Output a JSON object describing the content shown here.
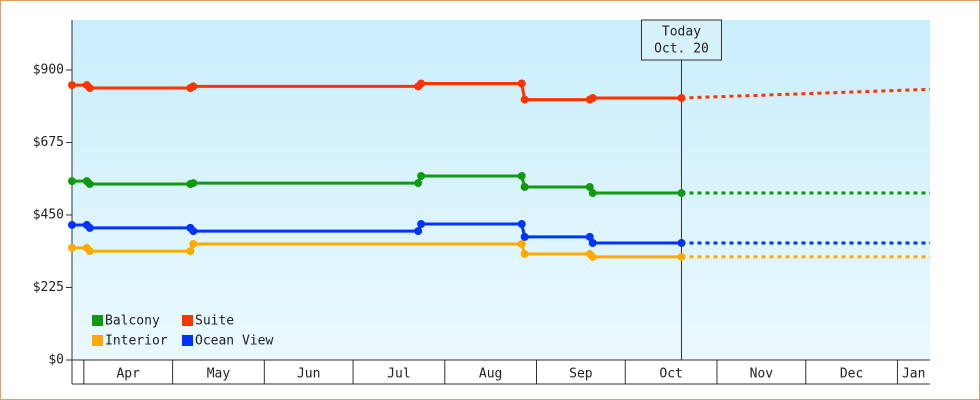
{
  "chart_data": {
    "type": "line",
    "xlim": [
      -4,
      286
    ],
    "ylim": [
      0,
      1055
    ],
    "xticks": [
      {
        "value": 0,
        "label": "Apr"
      },
      {
        "value": 30,
        "label": "May"
      },
      {
        "value": 61,
        "label": "Jun"
      },
      {
        "value": 91,
        "label": "Jul"
      },
      {
        "value": 122,
        "label": "Aug"
      },
      {
        "value": 153,
        "label": "Sep"
      },
      {
        "value": 183,
        "label": "Oct"
      },
      {
        "value": 214,
        "label": "Nov"
      },
      {
        "value": 244,
        "label": "Dec"
      },
      {
        "value": 275,
        "label": "Jan"
      }
    ],
    "yticks": [
      {
        "value": 0,
        "label": "$0"
      },
      {
        "value": 225,
        "label": "$225"
      },
      {
        "value": 450,
        "label": "$450"
      },
      {
        "value": 675,
        "label": "$675"
      },
      {
        "value": 900,
        "label": "$900"
      }
    ],
    "grid": false,
    "legend": "lower left",
    "annotation": {
      "x": 202,
      "lines": [
        "Today",
        "Oct. 20"
      ]
    },
    "series": [
      {
        "name": "Balcony",
        "color": "#119911",
        "x": [
          -4,
          1,
          2,
          36,
          37,
          113,
          114,
          148,
          149,
          171,
          172,
          202
        ],
        "values": [
          555,
          555,
          546,
          546,
          549,
          549,
          571,
          571,
          537,
          537,
          518,
          518
        ],
        "forecast_x": [
          202,
          286
        ],
        "forecast_values": [
          518,
          518
        ]
      },
      {
        "name": "Suite",
        "color": "#ff3300",
        "x": [
          -4,
          1,
          2,
          36,
          37,
          113,
          114,
          148,
          149,
          171,
          172,
          202
        ],
        "values": [
          853,
          853,
          844,
          844,
          849,
          849,
          858,
          858,
          808,
          808,
          813,
          813
        ],
        "forecast_x": [
          202,
          249,
          286
        ],
        "forecast_values": [
          813,
          828,
          840
        ]
      },
      {
        "name": "Interior",
        "color": "#ffaa00",
        "x": [
          -4,
          1,
          2,
          36,
          37,
          148,
          149,
          171,
          172,
          202
        ],
        "values": [
          348,
          348,
          338,
          338,
          360,
          360,
          329,
          329,
          320,
          320
        ],
        "forecast_x": [
          202,
          286
        ],
        "forecast_values": [
          320,
          320
        ]
      },
      {
        "name": "Ocean View",
        "color": "#0033ff",
        "x": [
          -4,
          1,
          2,
          36,
          37,
          113,
          114,
          148,
          149,
          171,
          172,
          202
        ],
        "values": [
          419,
          419,
          410,
          410,
          400,
          400,
          422,
          422,
          382,
          382,
          363,
          363
        ],
        "forecast_x": [
          202,
          286
        ],
        "forecast_values": [
          363,
          363
        ]
      }
    ]
  }
}
